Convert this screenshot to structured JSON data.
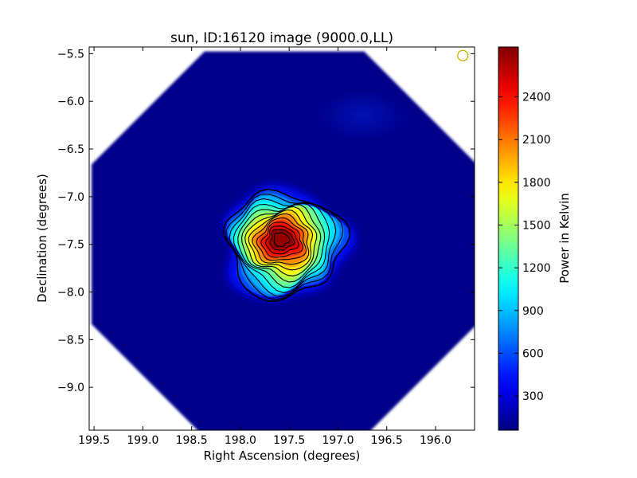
{
  "chart_data": {
    "type": "heatmap",
    "title": "sun, ID:16120 image (9000.0,LL)",
    "xlabel": "Right Ascension (degrees)",
    "ylabel": "Declination (degrees)",
    "xlim": [
      199.55,
      195.6
    ],
    "ylim": [
      -9.45,
      -5.43
    ],
    "x_ticks": [
      {
        "value": 199.5,
        "label": "199.5"
      },
      {
        "value": 199.0,
        "label": "199.0"
      },
      {
        "value": 198.5,
        "label": "198.5"
      },
      {
        "value": 198.0,
        "label": "198.0"
      },
      {
        "value": 197.5,
        "label": "197.5"
      },
      {
        "value": 197.0,
        "label": "197.0"
      },
      {
        "value": 196.5,
        "label": "196.5"
      },
      {
        "value": 196.0,
        "label": "196.0"
      }
    ],
    "y_ticks": [
      {
        "value": -5.5,
        "label": "−5.5"
      },
      {
        "value": -6.0,
        "label": "−6.0"
      },
      {
        "value": -6.5,
        "label": "−6.5"
      },
      {
        "value": -7.0,
        "label": "−7.0"
      },
      {
        "value": -7.5,
        "label": "−7.5"
      },
      {
        "value": -8.0,
        "label": "−8.0"
      },
      {
        "value": -8.5,
        "label": "−8.5"
      },
      {
        "value": -9.0,
        "label": "−9.0"
      }
    ],
    "colorbar": {
      "label": "Power in Kelvin",
      "range": [
        60,
        2750
      ],
      "colormap": "jet",
      "ticks": [
        {
          "value": 300,
          "label": "300"
        },
        {
          "value": 600,
          "label": "600"
        },
        {
          "value": 900,
          "label": "900"
        },
        {
          "value": 1200,
          "label": "1200"
        },
        {
          "value": 1500,
          "label": "1500"
        },
        {
          "value": 1800,
          "label": "1800"
        },
        {
          "value": 2100,
          "label": "2100"
        },
        {
          "value": 2400,
          "label": "2400"
        }
      ]
    },
    "field_of_view": {
      "shape": "octagon",
      "center": [
        197.55,
        -7.5
      ],
      "background_value": 90
    },
    "source": {
      "center": [
        197.55,
        -7.5
      ],
      "peak_value": 2700,
      "extent_ra": 1.2,
      "extent_dec": 1.1
    },
    "contours": {
      "color": "#000000",
      "count": 14
    },
    "beam_marker": {
      "shape": "circle",
      "color": "#c8b400",
      "position": [
        195.72,
        -5.52
      ]
    },
    "grid": false,
    "colors": {
      "background": "#00007f",
      "peak": "#7f0000",
      "axis": "#000000"
    }
  }
}
